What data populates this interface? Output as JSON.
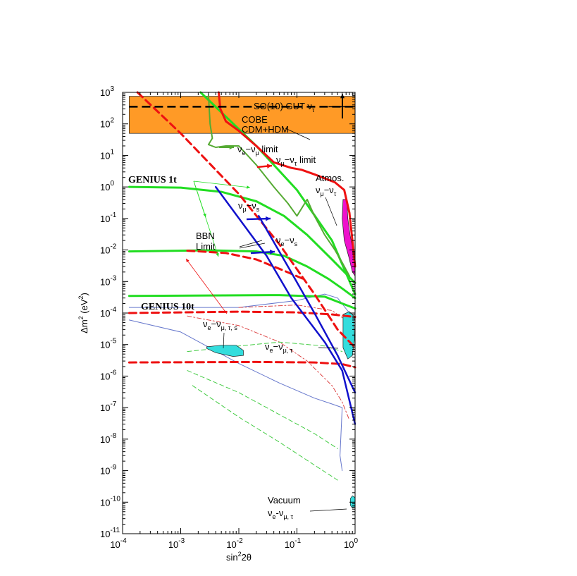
{
  "chart_data": {
    "type": "line",
    "xlabel": {
      "base": "sin",
      "sup": "2",
      "rest": "2θ"
    },
    "ylabel": {
      "pre": "Δm",
      "sup": "2",
      "mid": " (eV",
      "sup2": "2",
      "post": ")"
    },
    "x_scale": "log",
    "y_scale": "log",
    "xlim": [
      0.0001,
      1
    ],
    "ylim": [
      1e-11,
      1000
    ],
    "x_ticks": [
      {
        "base": "10",
        "exp": "-4",
        "value": 0.0001
      },
      {
        "base": "10",
        "exp": "-3",
        "value": 0.001
      },
      {
        "base": "10",
        "exp": "-2",
        "value": 0.01
      },
      {
        "base": "10",
        "exp": "-1",
        "value": 0.1
      },
      {
        "base": "10",
        "exp": "0",
        "value": 1
      }
    ],
    "y_ticks": [
      {
        "base": "10",
        "exp": "-11",
        "value": 1e-11
      },
      {
        "base": "10",
        "exp": "-10",
        "value": 1e-10
      },
      {
        "base": "10",
        "exp": "-9",
        "value": 1e-09
      },
      {
        "base": "10",
        "exp": "-8",
        "value": 1e-08
      },
      {
        "base": "10",
        "exp": "-7",
        "value": 1e-07
      },
      {
        "base": "10",
        "exp": "-6",
        "value": 1e-06
      },
      {
        "base": "10",
        "exp": "-5",
        "value": 1e-05
      },
      {
        "base": "10",
        "exp": "-4",
        "value": 0.0001
      },
      {
        "base": "10",
        "exp": "-3",
        "value": 0.001
      },
      {
        "base": "10",
        "exp": "-2",
        "value": 0.01
      },
      {
        "base": "10",
        "exp": "-1",
        "value": 0.1
      },
      {
        "base": "10",
        "exp": "0",
        "value": 1
      },
      {
        "base": "10",
        "exp": "1",
        "value": 10
      },
      {
        "base": "10",
        "exp": "2",
        "value": 100
      },
      {
        "base": "10",
        "exp": "3",
        "value": 1000
      }
    ],
    "colors": {
      "cobe_band": "#ff9a26",
      "green": "#22dd22",
      "darkgreen": "#55aa33",
      "red": "#ee1111",
      "blue": "#1111cc",
      "thinblue": "#6677cc",
      "thinred": "#dd4444",
      "thingreen": "#44cc44",
      "cyan": "#33dddd",
      "magenta": "#ee11cc"
    },
    "bands": [
      {
        "name": "cobe",
        "xmin": 0.00013,
        "xmax": 1,
        "ymin": 50,
        "ymax": 750,
        "color": "#ff9a26"
      }
    ],
    "hlines": [
      {
        "name": "so10-gut",
        "y": 350,
        "xmin": 0.00013,
        "xmax": 1,
        "style": "dashed",
        "color": "#000000"
      },
      {
        "name": "gut-solid",
        "y": 350,
        "xmin": 0.35,
        "xmax": 1,
        "style": "solid",
        "color": "#000000"
      }
    ],
    "curves": [
      {
        "name": "genius-1t-upper",
        "color": "#22dd22",
        "width": 3,
        "dash": "",
        "points": [
          [
            0.00013,
            1.0
          ],
          [
            0.001,
            0.95
          ],
          [
            0.005,
            0.7
          ],
          [
            0.02,
            0.35
          ],
          [
            0.06,
            0.12
          ],
          [
            0.15,
            0.03
          ],
          [
            0.4,
            0.005
          ],
          [
            1,
            0.0009
          ]
        ]
      },
      {
        "name": "genius-1t-mid",
        "color": "#22dd22",
        "width": 3,
        "dash": "",
        "points": [
          [
            0.00013,
            0.009
          ],
          [
            0.003,
            0.0098
          ],
          [
            0.02,
            0.009
          ],
          [
            0.06,
            0.0065
          ],
          [
            0.15,
            0.003
          ],
          [
            0.35,
            0.0012
          ],
          [
            0.6,
            0.0006
          ],
          [
            1,
            0.0003
          ]
        ]
      },
      {
        "name": "genius-10t",
        "color": "#22dd22",
        "width": 3,
        "dash": "",
        "points": [
          [
            0.00013,
            0.00035
          ],
          [
            0.05,
            0.00037
          ],
          [
            0.3,
            0.00033
          ],
          [
            0.6,
            0.0002
          ],
          [
            1,
            0.00014
          ]
        ]
      },
      {
        "name": "green-diagonal",
        "color": "#22dd22",
        "width": 3,
        "dash": "",
        "points": [
          [
            0.0022,
            1000
          ],
          [
            0.02,
            20
          ],
          [
            0.1,
            0.8
          ],
          [
            0.4,
            0.02
          ],
          [
            1,
            0.0004
          ]
        ]
      },
      {
        "name": "nue-numu-limit",
        "color": "#55aa33",
        "width": 2,
        "dash": "",
        "points": [
          [
            0.003,
            800
          ],
          [
            0.0032,
            100
          ],
          [
            0.0035,
            35
          ],
          [
            0.003,
            22
          ],
          [
            0.004,
            18
          ],
          [
            0.006,
            20
          ],
          [
            0.01,
            20
          ],
          [
            0.02,
            5
          ],
          [
            0.04,
            1
          ],
          [
            0.07,
            0.3
          ],
          [
            0.1,
            0.12
          ],
          [
            0.15,
            0.4
          ],
          [
            0.2,
            0.12
          ],
          [
            0.3,
            0.03
          ],
          [
            0.45,
            0.01
          ],
          [
            0.6,
            0.004
          ],
          [
            0.8,
            0.0015
          ]
        ]
      },
      {
        "name": "numu-nutau-limit",
        "color": "#ee1111",
        "width": 3,
        "dash": "",
        "points": [
          [
            0.0045,
            1000
          ],
          [
            0.0048,
            300
          ],
          [
            0.006,
            120
          ],
          [
            0.01,
            60
          ],
          [
            0.02,
            20
          ],
          [
            0.04,
            6
          ],
          [
            0.08,
            4
          ],
          [
            0.12,
            3.5
          ],
          [
            0.2,
            2.5
          ],
          [
            0.45,
            1.4
          ],
          [
            0.65,
            0.8
          ],
          [
            0.8,
            0.15
          ],
          [
            0.9,
            0.02
          ],
          [
            1,
            0.003
          ]
        ]
      },
      {
        "name": "red-dashed-diagonal",
        "color": "#ee1111",
        "width": 3,
        "dash": "10,6",
        "points": [
          [
            0.00018,
            1000
          ],
          [
            0.001,
            50
          ],
          [
            0.01,
            0.6
          ],
          [
            0.05,
            0.015
          ],
          [
            0.2,
            0.0004
          ],
          [
            0.5,
            3e-05
          ],
          [
            1,
            8e-06
          ]
        ]
      },
      {
        "name": "red-dashed-lower-1",
        "color": "#ee1111",
        "width": 3,
        "dash": "10,6",
        "points": [
          [
            0.0013,
            0.0095
          ],
          [
            0.006,
            0.008
          ],
          [
            0.02,
            0.005
          ],
          [
            0.06,
            0.0022
          ],
          [
            0.13,
            0.0012
          ]
        ]
      },
      {
        "name": "red-dashed-lower-2",
        "color": "#ee1111",
        "width": 3,
        "dash": "10,6",
        "points": [
          [
            0.00013,
            0.0001
          ],
          [
            0.01,
            0.00011
          ],
          [
            0.1,
            0.000105
          ],
          [
            0.4,
            9e-05
          ],
          [
            1,
            7.5e-05
          ]
        ]
      },
      {
        "name": "red-dashed-lower-3",
        "color": "#ee1111",
        "width": 3,
        "dash": "10,6",
        "points": [
          [
            0.00013,
            2.7e-06
          ],
          [
            0.02,
            2.8e-06
          ],
          [
            0.2,
            2.7e-06
          ],
          [
            0.6,
            2.4e-06
          ],
          [
            1,
            1.9e-06
          ]
        ]
      },
      {
        "name": "numu-nus",
        "color": "#1111cc",
        "width": 2.5,
        "dash": "",
        "points": [
          [
            0.004,
            1.0
          ],
          [
            0.03,
            0.0065
          ],
          [
            0.08,
            0.0003
          ],
          [
            0.3,
            1.2e-05
          ],
          [
            0.6,
            1.5e-06
          ],
          [
            1,
            3e-08
          ]
        ]
      },
      {
        "name": "nue-nus",
        "color": "#1111cc",
        "width": 2.5,
        "dash": "",
        "points": [
          [
            0.022,
            0.12
          ],
          [
            0.07,
            0.003
          ],
          [
            0.2,
            0.0001
          ],
          [
            0.5,
            4.5e-06
          ],
          [
            1,
            3e-07
          ]
        ]
      },
      {
        "name": "thin-blue-outer",
        "color": "#6677cc",
        "width": 1,
        "dash": "",
        "points": [
          [
            0.00013,
            6e-05
          ],
          [
            0.001,
            2.5e-05
          ],
          [
            0.01,
            2.5e-06
          ],
          [
            0.05,
            6e-07
          ],
          [
            0.2,
            2e-07
          ],
          [
            0.4,
            1.3e-07
          ],
          [
            0.6,
            1e-07
          ],
          [
            0.55,
            3e-09
          ],
          [
            0.6,
            1e-09
          ]
        ]
      },
      {
        "name": "thin-blue-upper",
        "color": "#6677cc",
        "width": 1,
        "dash": "",
        "points": [
          [
            0.00013,
            0.00015
          ],
          [
            0.01,
            0.00015
          ],
          [
            0.1,
            0.00025
          ],
          [
            0.3,
            0.0004
          ],
          [
            0.5,
            0.0003
          ],
          [
            0.8,
            0.0001
          ],
          [
            1,
            6e-05
          ]
        ]
      },
      {
        "name": "thin-red-dashdot",
        "color": "#dd4444",
        "width": 1,
        "dash": "6,3,2,3",
        "points": [
          [
            0.0013,
            8e-05
          ],
          [
            0.01,
            4e-05
          ],
          [
            0.05,
            1.2e-05
          ],
          [
            0.15,
            3e-06
          ],
          [
            0.4,
            5e-07
          ],
          [
            0.6,
            1.5e-07
          ],
          [
            0.8,
            4e-08
          ]
        ]
      },
      {
        "name": "thin-red-dashdot-upper",
        "color": "#dd4444",
        "width": 1,
        "dash": "6,3,2,3",
        "points": [
          [
            0.01,
            0.00015
          ],
          [
            0.1,
            0.00018
          ],
          [
            0.4,
            0.00012
          ],
          [
            0.8,
            5e-05
          ]
        ]
      },
      {
        "name": "thin-green-dashed-1",
        "color": "#44cc44",
        "width": 1,
        "dash": "6,4",
        "points": [
          [
            0.0013,
            6e-06
          ],
          [
            0.01,
            9e-06
          ],
          [
            0.05,
            1.2e-05
          ],
          [
            0.3,
            9e-06
          ],
          [
            0.6,
            6e-06
          ]
        ]
      },
      {
        "name": "thin-green-dashed-2",
        "color": "#44cc44",
        "width": 1,
        "dash": "6,4",
        "points": [
          [
            0.0013,
            1.5e-06
          ],
          [
            0.01,
            3e-07
          ],
          [
            0.05,
            6e-08
          ],
          [
            0.2,
            1.5e-08
          ],
          [
            0.5,
            5e-09
          ]
        ]
      },
      {
        "name": "thin-green-dashed-3",
        "color": "#44cc44",
        "width": 1,
        "dash": "6,4",
        "points": [
          [
            0.0016,
            5e-07
          ],
          [
            0.01,
            5e-08
          ],
          [
            0.05,
            8e-09
          ],
          [
            0.2,
            1.5e-09
          ],
          [
            0.5,
            5e-10
          ]
        ]
      }
    ],
    "regions": [
      {
        "name": "atmos-region",
        "color": "#ee11cc",
        "points": [
          [
            0.62,
            0.4
          ],
          [
            0.72,
            0.4
          ],
          [
            0.75,
            0.1
          ],
          [
            0.82,
            0.03
          ],
          [
            0.92,
            0.01
          ],
          [
            1,
            0.005
          ],
          [
            1,
            0.0015
          ],
          [
            0.9,
            0.002
          ],
          [
            0.78,
            0.006
          ],
          [
            0.65,
            0.02
          ],
          [
            0.6,
            0.1
          ]
        ]
      },
      {
        "name": "msw-small-angle",
        "color": "#33dddd",
        "points": [
          [
            0.0028,
            8.5e-06
          ],
          [
            0.005,
            9.5e-06
          ],
          [
            0.009,
            9.5e-06
          ],
          [
            0.012,
            6.5e-06
          ],
          [
            0.012,
            4.5e-06
          ],
          [
            0.008,
            4.2e-06
          ],
          [
            0.004,
            5.5e-06
          ],
          [
            0.0028,
            7.5e-06
          ]
        ]
      },
      {
        "name": "msw-large-angle",
        "color": "#33dddd",
        "points": [
          [
            0.62,
            9e-05
          ],
          [
            0.8,
            0.00011
          ],
          [
            0.95,
            8e-05
          ],
          [
            0.98,
            1.5e-05
          ],
          [
            0.9,
            4.5e-06
          ],
          [
            0.75,
            3.5e-06
          ],
          [
            0.62,
            8e-06
          ]
        ]
      },
      {
        "name": "vacuum-region",
        "color": "#33dddd",
        "points": [
          [
            0.83,
            1.3e-10
          ],
          [
            0.9,
            1.6e-10
          ],
          [
            1,
            1.4e-10
          ],
          [
            1,
            7e-11
          ],
          [
            0.9,
            6.5e-11
          ],
          [
            0.83,
            8e-11
          ]
        ]
      }
    ],
    "annotations": [
      {
        "name": "so10-label",
        "html": [
          {
            "t": "SO(10) GUT ν"
          },
          {
            "sub": "τ"
          }
        ]
      },
      {
        "name": "cobe-label",
        "lines": [
          "COBE",
          "CDM+HDM"
        ]
      },
      {
        "name": "nue-numu-label",
        "html": [
          {
            "t": "ν"
          },
          {
            "sub": "e"
          },
          {
            "t": "−ν"
          },
          {
            "sub": "μ"
          },
          {
            "t": " limit"
          }
        ]
      },
      {
        "name": "numu-nutau-label",
        "html": [
          {
            "t": "ν"
          },
          {
            "sub": "μ"
          },
          {
            "t": "−ν"
          },
          {
            "sub": "τ"
          },
          {
            "t": " limit"
          }
        ]
      },
      {
        "name": "genius-1t-label",
        "text": "GENIUS 1t"
      },
      {
        "name": "atmos-label",
        "text": "Atmos."
      },
      {
        "name": "atmos-sub-label",
        "html": [
          {
            "t": "ν"
          },
          {
            "sub": "μ"
          },
          {
            "t": "−ν"
          },
          {
            "sub": "τ"
          }
        ]
      },
      {
        "name": "numu-nus-label",
        "html": [
          {
            "t": "ν"
          },
          {
            "sub": "μ"
          },
          {
            "t": "−ν"
          },
          {
            "sub": "s"
          }
        ]
      },
      {
        "name": "bbn-label",
        "lines": [
          "BBN",
          "Limit"
        ]
      },
      {
        "name": "nue-nus-label",
        "html": [
          {
            "t": "ν"
          },
          {
            "sub": "e"
          },
          {
            "t": "−ν"
          },
          {
            "sub": "s"
          }
        ]
      },
      {
        "name": "genius-10t-label",
        "text": "GENIUS 10t"
      },
      {
        "name": "nue-nus-mu-tau-s-label",
        "html": [
          {
            "t": "ν"
          },
          {
            "sub": "e"
          },
          {
            "t": "−ν"
          },
          {
            "sub": "μ, τ, s"
          }
        ]
      },
      {
        "name": "nue-numu-tau-label",
        "html": [
          {
            "t": "ν"
          },
          {
            "sub": "e"
          },
          {
            "t": "−ν"
          },
          {
            "sub": "μ, τ"
          }
        ]
      },
      {
        "name": "vacuum-label",
        "text": "Vacuum"
      },
      {
        "name": "vacuum-sub-label",
        "html": [
          {
            "t": "ν"
          },
          {
            "sub": "e"
          },
          {
            "t": "-ν"
          },
          {
            "sub": "μ, τ"
          }
        ]
      }
    ]
  }
}
